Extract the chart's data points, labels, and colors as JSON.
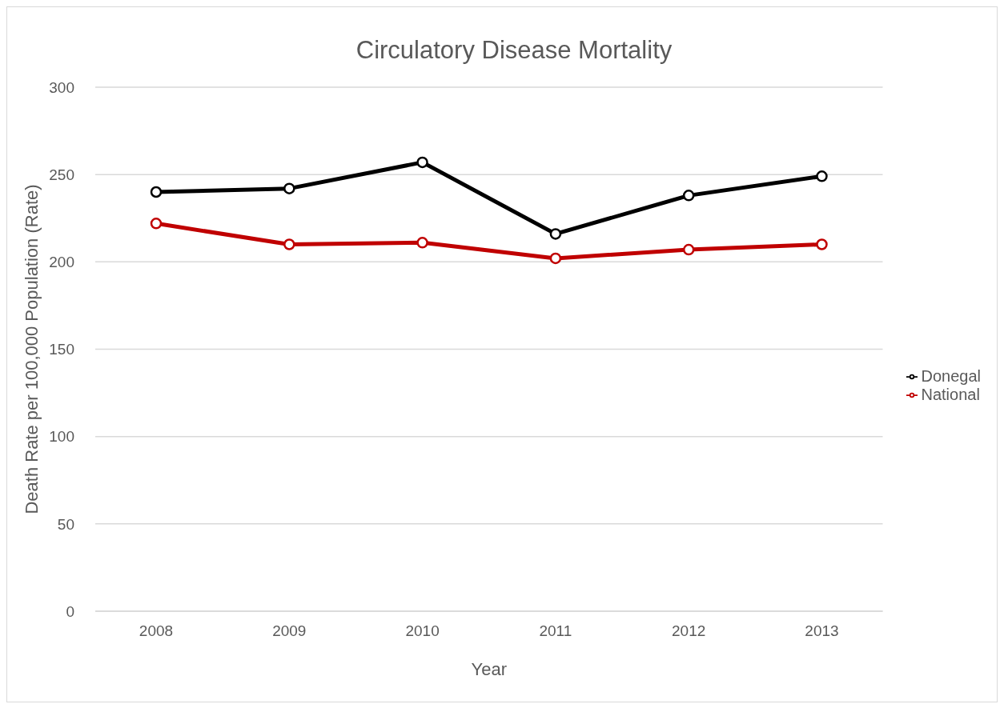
{
  "chart_data": {
    "type": "line",
    "title": "Circulatory Disease Mortality",
    "xlabel": "Year",
    "ylabel": "Death Rate per 100,000 Population (Rate)",
    "categories": [
      "2008",
      "2009",
      "2010",
      "2011",
      "2012",
      "2013"
    ],
    "series": [
      {
        "name": "Donegal",
        "color": "#000000",
        "values": [
          240,
          242,
          257,
          216,
          238,
          249
        ]
      },
      {
        "name": "National",
        "color": "#c00000",
        "values": [
          222,
          210,
          211,
          202,
          207,
          210
        ]
      }
    ],
    "ylim": [
      0,
      300
    ],
    "yticks": [
      0,
      50,
      100,
      150,
      200,
      250,
      300
    ],
    "grid": "y",
    "legend": "right",
    "marker": "circle",
    "line_style": "solid"
  }
}
